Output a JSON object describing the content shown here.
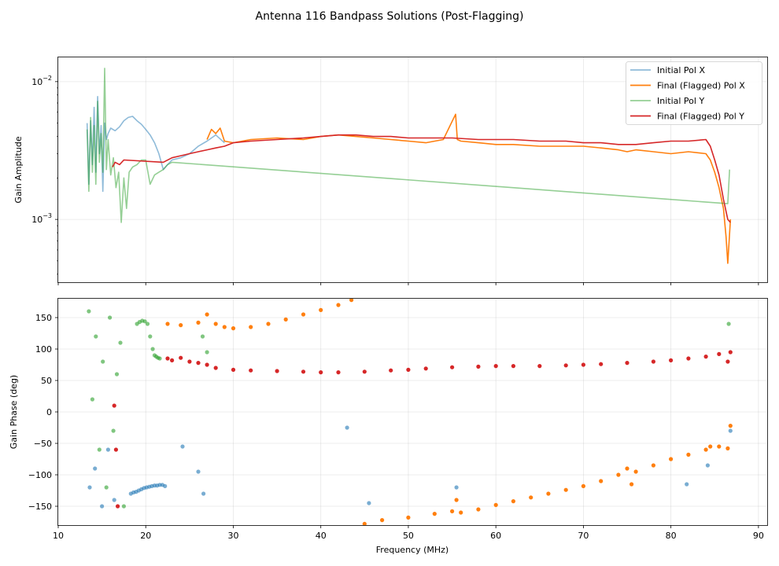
{
  "chart_data": [
    {
      "type": "line",
      "title": "Antenna 116 Bandpass Solutions (Post-Flagging)",
      "xlabel": "",
      "ylabel": "Gain Amplitude",
      "yscale": "log",
      "xlim": [
        10,
        91
      ],
      "ylim": [
        0.00035,
        0.015
      ],
      "x_ticks": [
        10,
        20,
        30,
        40,
        50,
        60,
        70,
        80,
        90
      ],
      "y_ticks": [
        {
          "value": 0.01,
          "label_base": "10",
          "label_exp": "−2"
        },
        {
          "value": 0.001,
          "label_base": "10",
          "label_exp": "−3"
        }
      ],
      "grid": true,
      "legend_position": "top-right",
      "series": [
        {
          "name": "Initial Pol X",
          "color": "#1f77b4",
          "alpha": 0.5,
          "x": [
            13.3,
            13.5,
            13.7,
            13.9,
            14.1,
            14.3,
            14.5,
            14.7,
            14.9,
            15.1,
            15.3,
            15.5,
            15.7,
            16.0,
            16.5,
            17.0,
            17.5,
            18.0,
            18.5,
            19.0,
            19.5,
            20.0,
            20.5,
            21.0,
            21.5,
            22.0,
            22.5,
            23.0,
            24.0,
            25.0,
            26.0,
            27.0,
            28.0,
            29.0
          ],
          "y": [
            0.005,
            0.0018,
            0.0052,
            0.0025,
            0.0065,
            0.0022,
            0.0078,
            0.003,
            0.0048,
            0.0016,
            0.005,
            0.0038,
            0.0042,
            0.0046,
            0.0044,
            0.0047,
            0.0052,
            0.0055,
            0.0056,
            0.0052,
            0.0049,
            0.0045,
            0.0041,
            0.0036,
            0.003,
            0.0023,
            0.0025,
            0.0027,
            0.0028,
            0.003,
            0.0034,
            0.0037,
            0.0041,
            0.0036
          ]
        },
        {
          "name": "Final (Flagged) Pol X",
          "color": "#ff7f0e",
          "alpha": 1.0,
          "x": [
            27.0,
            27.5,
            28.0,
            28.5,
            29.0,
            30.0,
            32.0,
            35.0,
            38.0,
            40.0,
            42.0,
            44.0,
            46.0,
            48.0,
            50.0,
            52.0,
            54.0,
            55.4,
            55.6,
            56.0,
            58.0,
            60.0,
            62.0,
            65.0,
            68.0,
            70.0,
            72.0,
            74.0,
            75.0,
            76.0,
            78.0,
            80.0,
            82.0,
            84.0,
            84.5,
            85.0,
            85.5,
            86.0,
            86.3,
            86.5,
            86.8
          ],
          "y": [
            0.0038,
            0.0045,
            0.0042,
            0.0046,
            0.0037,
            0.0036,
            0.0038,
            0.0039,
            0.0038,
            0.004,
            0.0041,
            0.004,
            0.0039,
            0.0038,
            0.0037,
            0.0036,
            0.0038,
            0.0058,
            0.0038,
            0.0037,
            0.0036,
            0.0035,
            0.0035,
            0.0034,
            0.0034,
            0.0034,
            0.0033,
            0.0032,
            0.0031,
            0.0032,
            0.0031,
            0.003,
            0.0031,
            0.003,
            0.0027,
            0.0022,
            0.0017,
            0.0012,
            0.00075,
            0.00048,
            0.001
          ]
        },
        {
          "name": "Initial Pol Y",
          "color": "#2ca02c",
          "alpha": 0.5,
          "x": [
            13.3,
            13.5,
            13.7,
            13.9,
            14.1,
            14.3,
            14.5,
            14.7,
            14.9,
            15.1,
            15.3,
            15.5,
            15.7,
            16.0,
            16.3,
            16.6,
            16.9,
            17.2,
            17.5,
            17.8,
            18.1,
            18.5,
            19.0,
            19.5,
            20.0,
            20.5,
            21.0,
            21.5,
            22.0,
            22.5,
            23.0,
            86.5,
            86.7
          ],
          "y": [
            0.0045,
            0.0016,
            0.0055,
            0.0022,
            0.0048,
            0.0018,
            0.0072,
            0.0026,
            0.0042,
            0.0022,
            0.0125,
            0.0023,
            0.0038,
            0.0021,
            0.0028,
            0.0017,
            0.0022,
            0.00095,
            0.002,
            0.0012,
            0.0022,
            0.0024,
            0.0025,
            0.0027,
            0.0027,
            0.0018,
            0.0021,
            0.0022,
            0.0023,
            0.0025,
            0.0026,
            0.0013,
            0.0023
          ]
        },
        {
          "name": "Final (Flagged) Pol Y",
          "color": "#d62728",
          "alpha": 1.0,
          "x": [
            16.2,
            16.5,
            17.0,
            17.5,
            22.0,
            23.0,
            24.0,
            25.0,
            26.0,
            27.0,
            28.0,
            29.0,
            30.0,
            32.0,
            35.0,
            38.0,
            40.0,
            42.0,
            44.0,
            46.0,
            48.0,
            50.0,
            52.0,
            55.0,
            58.0,
            60.0,
            62.0,
            65.0,
            68.0,
            70.0,
            72.0,
            74.0,
            76.0,
            78.0,
            80.0,
            82.0,
            84.0,
            84.5,
            85.0,
            85.5,
            86.0,
            86.5,
            86.8
          ],
          "y": [
            0.0024,
            0.0026,
            0.0025,
            0.0027,
            0.0026,
            0.0028,
            0.0029,
            0.003,
            0.0031,
            0.0032,
            0.0033,
            0.0034,
            0.0036,
            0.0037,
            0.0038,
            0.0039,
            0.004,
            0.0041,
            0.0041,
            0.004,
            0.004,
            0.0039,
            0.0039,
            0.0039,
            0.0038,
            0.0038,
            0.0038,
            0.0037,
            0.0037,
            0.0036,
            0.0036,
            0.0035,
            0.0035,
            0.0036,
            0.0037,
            0.0037,
            0.0038,
            0.0034,
            0.0027,
            0.0021,
            0.0014,
            0.001,
            0.00095
          ]
        }
      ]
    },
    {
      "type": "scatter",
      "title": "",
      "xlabel": "Frequency (MHz)",
      "ylabel": "Gain Phase (deg)",
      "xlim": [
        10,
        91
      ],
      "ylim": [
        -180,
        180
      ],
      "x_ticks": [
        10,
        20,
        30,
        40,
        50,
        60,
        70,
        80,
        90
      ],
      "y_ticks": [
        -150,
        -100,
        -50,
        0,
        50,
        100,
        150
      ],
      "grid": true,
      "series": [
        {
          "name": "Initial Pol X",
          "color": "#1f77b4",
          "alpha": 0.6,
          "x": [
            18.3,
            18.6,
            18.9,
            19.2,
            19.5,
            19.8,
            20.1,
            20.4,
            20.7,
            21.0,
            21.3,
            21.6,
            21.9,
            22.2,
            13.6,
            14.2,
            15.0,
            15.7,
            16.4,
            24.2,
            26.0,
            26.6,
            43.0,
            45.5,
            55.5,
            81.8,
            84.2,
            86.8
          ],
          "y": [
            -130,
            -128,
            -127,
            -125,
            -123,
            -121,
            -120,
            -119,
            -118,
            -117,
            -117,
            -116,
            -116,
            -118,
            -120,
            -90,
            -150,
            -60,
            -140,
            -55,
            -95,
            -130,
            -25,
            -145,
            -120,
            -115,
            -85,
            -30
          ]
        },
        {
          "name": "Final (Flagged) Pol X",
          "color": "#ff7f0e",
          "alpha": 1.0,
          "x": [
            22.5,
            24.0,
            26.0,
            27.0,
            28.0,
            29.0,
            30.0,
            32.0,
            34.0,
            36.0,
            38.0,
            40.0,
            42.0,
            43.5,
            45.0,
            47.0,
            50.0,
            53.0,
            55.0,
            55.5,
            56.0,
            58.0,
            60.0,
            62.0,
            64.0,
            66.0,
            68.0,
            70.0,
            72.0,
            74.0,
            75.0,
            75.5,
            76.0,
            78.0,
            80.0,
            82.0,
            84.0,
            84.5,
            85.5,
            86.5,
            86.8
          ],
          "y": [
            140,
            138,
            142,
            155,
            140,
            135,
            133,
            135,
            140,
            147,
            155,
            162,
            170,
            178,
            -178,
            -172,
            -168,
            -162,
            -158,
            -140,
            -160,
            -155,
            -148,
            -142,
            -136,
            -130,
            -124,
            -118,
            -110,
            -100,
            -90,
            -115,
            -95,
            -85,
            -75,
            -68,
            -60,
            -55,
            -55,
            -58,
            -22
          ]
        },
        {
          "name": "Initial Pol Y",
          "color": "#2ca02c",
          "alpha": 0.6,
          "x": [
            19.0,
            19.3,
            19.6,
            19.9,
            20.2,
            20.5,
            20.8,
            21.0,
            21.2,
            21.4,
            21.6,
            13.5,
            13.9,
            14.3,
            14.7,
            15.1,
            15.5,
            15.9,
            16.3,
            16.7,
            17.1,
            17.5,
            26.5,
            27.0,
            86.6
          ],
          "y": [
            140,
            143,
            145,
            144,
            140,
            120,
            100,
            90,
            88,
            86,
            85,
            160,
            20,
            120,
            -60,
            80,
            -120,
            150,
            -30,
            60,
            110,
            -150,
            120,
            95,
            140
          ]
        },
        {
          "name": "Final (Flagged) Pol Y",
          "color": "#d62728",
          "alpha": 1.0,
          "x": [
            22.5,
            23.0,
            24.0,
            25.0,
            26.0,
            27.0,
            28.0,
            30.0,
            32.0,
            35.0,
            38.0,
            40.0,
            42.0,
            45.0,
            48.0,
            50.0,
            52.0,
            55.0,
            58.0,
            60.0,
            62.0,
            65.0,
            68.0,
            70.0,
            72.0,
            75.0,
            78.0,
            80.0,
            82.0,
            84.0,
            85.5,
            86.5,
            86.8,
            16.4,
            16.6,
            16.8
          ],
          "y": [
            85,
            82,
            86,
            80,
            78,
            75,
            70,
            67,
            66,
            65,
            64,
            63,
            63,
            64,
            66,
            67,
            69,
            71,
            72,
            73,
            73,
            73,
            74,
            75,
            76,
            78,
            80,
            82,
            85,
            88,
            92,
            80,
            95,
            10,
            -60,
            -150
          ]
        }
      ]
    }
  ]
}
